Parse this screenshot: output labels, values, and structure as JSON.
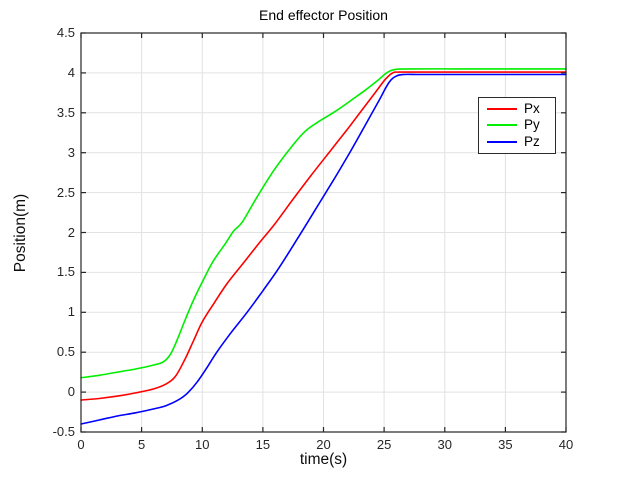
{
  "figure": {
    "background": "#ffffff",
    "axis_color": "#262626",
    "grid_color": "#e2e2e2",
    "plot_bg": "#ffffff"
  },
  "chart_data": {
    "type": "line",
    "title": "End effector Position",
    "xlabel": "time(s)",
    "ylabel": "Position(m)",
    "xlim": [
      0,
      40
    ],
    "ylim": [
      -0.5,
      4.5
    ],
    "xticks": [
      0,
      5,
      10,
      15,
      20,
      25,
      30,
      35,
      40
    ],
    "yticks": [
      -0.5,
      0,
      0.5,
      1,
      1.5,
      2,
      2.5,
      3,
      3.5,
      4,
      4.5
    ],
    "xtick_labels": [
      "0",
      "5",
      "10",
      "15",
      "20",
      "25",
      "30",
      "35",
      "40"
    ],
    "ytick_labels": [
      "-0.5",
      "0",
      "0.5",
      "1",
      "1.5",
      "2",
      "2.5",
      "3",
      "3.5",
      "4",
      "4.5"
    ],
    "grid": true,
    "legend_position": "northeast-inside",
    "series": [
      {
        "name": "Px",
        "color": "#ff0000",
        "points": [
          [
            0,
            -0.1
          ],
          [
            1.5,
            -0.08
          ],
          [
            3,
            -0.05
          ],
          [
            4.5,
            -0.01
          ],
          [
            6,
            0.04
          ],
          [
            7,
            0.1
          ],
          [
            7.8,
            0.2
          ],
          [
            8.6,
            0.42
          ],
          [
            9.3,
            0.65
          ],
          [
            10,
            0.88
          ],
          [
            11,
            1.12
          ],
          [
            12,
            1.35
          ],
          [
            13.3,
            1.6
          ],
          [
            14.6,
            1.85
          ],
          [
            16,
            2.11
          ],
          [
            17.5,
            2.42
          ],
          [
            19,
            2.72
          ],
          [
            20.5,
            3.01
          ],
          [
            22,
            3.3
          ],
          [
            23.3,
            3.56
          ],
          [
            24.3,
            3.76
          ],
          [
            25.1,
            3.92
          ],
          [
            25.7,
            4.0
          ],
          [
            26.2,
            4.01
          ],
          [
            28,
            4.01
          ],
          [
            31,
            4.01
          ],
          [
            35,
            4.01
          ],
          [
            40,
            4.01
          ]
        ]
      },
      {
        "name": "Py",
        "color": "#00ee00",
        "points": [
          [
            0,
            0.18
          ],
          [
            1.5,
            0.21
          ],
          [
            3,
            0.25
          ],
          [
            4.5,
            0.29
          ],
          [
            6,
            0.34
          ],
          [
            6.8,
            0.38
          ],
          [
            7.4,
            0.48
          ],
          [
            8,
            0.68
          ],
          [
            8.6,
            0.91
          ],
          [
            9.3,
            1.16
          ],
          [
            10.1,
            1.41
          ],
          [
            10.9,
            1.64
          ],
          [
            11.9,
            1.86
          ],
          [
            12.6,
            2.02
          ],
          [
            13.3,
            2.13
          ],
          [
            14.5,
            2.44
          ],
          [
            16,
            2.8
          ],
          [
            17.5,
            3.1
          ],
          [
            18.5,
            3.27
          ],
          [
            19.5,
            3.38
          ],
          [
            21,
            3.52
          ],
          [
            22.5,
            3.68
          ],
          [
            23.5,
            3.79
          ],
          [
            24.5,
            3.91
          ],
          [
            25.2,
            4.0
          ],
          [
            25.8,
            4.04
          ],
          [
            27,
            4.05
          ],
          [
            31,
            4.05
          ],
          [
            35,
            4.05
          ],
          [
            40,
            4.05
          ]
        ]
      },
      {
        "name": "Pz",
        "color": "#0000ff",
        "points": [
          [
            0,
            -0.4
          ],
          [
            1.5,
            -0.35
          ],
          [
            3,
            -0.3
          ],
          [
            4.5,
            -0.26
          ],
          [
            6,
            -0.21
          ],
          [
            7,
            -0.17
          ],
          [
            8,
            -0.1
          ],
          [
            8.8,
            -0.01
          ],
          [
            9.6,
            0.13
          ],
          [
            10.4,
            0.31
          ],
          [
            11.2,
            0.5
          ],
          [
            12.4,
            0.75
          ],
          [
            13.7,
            1.0
          ],
          [
            15,
            1.27
          ],
          [
            16.3,
            1.55
          ],
          [
            17.8,
            1.91
          ],
          [
            19.3,
            2.28
          ],
          [
            20.8,
            2.65
          ],
          [
            22.2,
            3.01
          ],
          [
            23.5,
            3.36
          ],
          [
            24.6,
            3.66
          ],
          [
            25.4,
            3.88
          ],
          [
            26,
            3.96
          ],
          [
            26.6,
            3.98
          ],
          [
            28,
            3.98
          ],
          [
            31,
            3.98
          ],
          [
            35,
            3.98
          ],
          [
            40,
            3.98
          ]
        ]
      }
    ]
  }
}
